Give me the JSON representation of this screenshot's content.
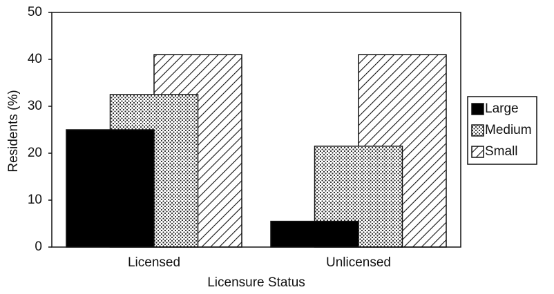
{
  "chart_data": {
    "type": "bar",
    "x_label": "Licensure Status",
    "y_label": "Residents (%)",
    "categories": [
      "Licensed",
      "Unlicensed"
    ],
    "series": [
      {
        "name": "Large",
        "color": "#000000",
        "pattern": "solid",
        "values": [
          25,
          5.5
        ]
      },
      {
        "name": "Medium",
        "color": "#000000",
        "pattern": "dots",
        "values": [
          32.5,
          21.5
        ]
      },
      {
        "name": "Small",
        "color": "#000000",
        "pattern": "hatch",
        "values": [
          41,
          41
        ]
      }
    ],
    "ylim": [
      0,
      50
    ],
    "yticks": [
      0,
      10,
      20,
      30,
      40,
      50
    ],
    "legend": "right"
  }
}
